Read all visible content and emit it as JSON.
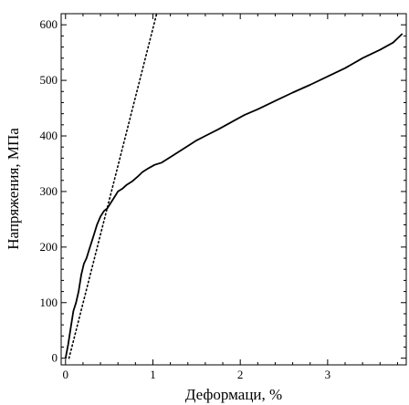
{
  "chart_data": {
    "type": "line",
    "title": "",
    "xlabel": "Деформаци, %",
    "ylabel": "Напряжения, МПа",
    "xlim": [
      -0.05,
      3.9
    ],
    "ylim": [
      -12,
      620
    ],
    "xticks": [
      0,
      1,
      2,
      3
    ],
    "yticks": [
      0,
      100,
      200,
      300,
      400,
      500,
      600
    ],
    "grid": false,
    "series": [
      {
        "style": "solid",
        "color": "#000000",
        "x": [
          0,
          0.03,
          0.06,
          0.09,
          0.12,
          0.15,
          0.18,
          0.21,
          0.24,
          0.27,
          0.3,
          0.33,
          0.36,
          0.4,
          0.44,
          0.48,
          0.52,
          0.56,
          0.6,
          0.65,
          0.7,
          0.76,
          0.82,
          0.88,
          0.95,
          1.02,
          1.1,
          1.2,
          1.3,
          1.4,
          1.5,
          1.6,
          1.75,
          1.9,
          2.05,
          2.2,
          2.4,
          2.6,
          2.8,
          3.0,
          3.2,
          3.4,
          3.6,
          3.75,
          3.85
        ],
        "y": [
          0,
          25,
          55,
          85,
          100,
          120,
          150,
          170,
          180,
          195,
          210,
          225,
          240,
          255,
          265,
          270,
          280,
          290,
          300,
          305,
          312,
          318,
          326,
          335,
          342,
          348,
          352,
          362,
          372,
          382,
          392,
          400,
          412,
          425,
          438,
          448,
          463,
          478,
          492,
          507,
          522,
          540,
          555,
          568,
          583
        ]
      },
      {
        "style": "dotted",
        "color": "#000000",
        "x": [
          0.04,
          1.04
        ],
        "y": [
          0,
          618
        ]
      }
    ]
  },
  "colors": {
    "line": "#000000",
    "frame": "#000000",
    "background": "#ffffff"
  }
}
